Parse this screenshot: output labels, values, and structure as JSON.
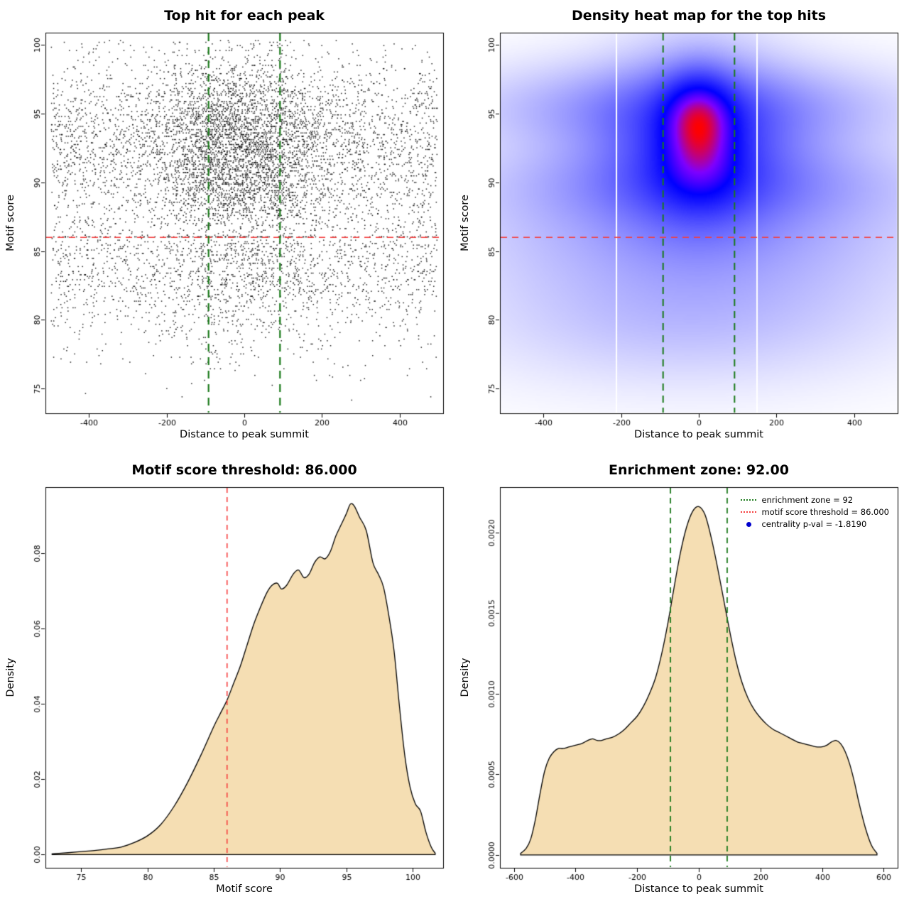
{
  "colors": {
    "background": "#ffffff",
    "point": "#000000",
    "threshold_line": "#f53d3d",
    "zone_line": "#1b7a1b",
    "density_fill": "#f5deb3",
    "curve_stroke": "#000000",
    "legend_dot": "#0000cd",
    "heat_low": "#ffffff",
    "heat_mid": "#0000ff",
    "heat_high": "#ff0000"
  },
  "values": {
    "motif_score_threshold": "86.000",
    "enrichment_zone": "92.00",
    "centrality_p_val": "-1.8190"
  },
  "chart_data": [
    {
      "type": "scatter",
      "title": "Top hit for each peak",
      "xlabel": "Distance to peak summit",
      "ylabel": "Motif score",
      "xlim": [
        -512,
        512
      ],
      "ylim": [
        73.2,
        100.9
      ],
      "xtick_values": [
        -400,
        -200,
        0,
        200,
        400
      ],
      "xtick_labels": [
        "-400",
        "-200",
        "0",
        "200",
        "400"
      ],
      "ytick_values": [
        75,
        80,
        85,
        90,
        95,
        100
      ],
      "ytick_labels": [
        "75",
        "80",
        "85",
        "90",
        "95",
        "100"
      ],
      "motif_score_threshold": 86,
      "enrichment_zone": [
        -92,
        92
      ],
      "cloud": {
        "n": 8200,
        "x_sigma_center": 118,
        "uniform_halfwidth": 497,
        "y_quantum": 0.12
      }
    },
    {
      "type": "heatmap",
      "title": "Density heat map for the top hits",
      "xlabel": "Distance to peak summit",
      "ylabel": "Motif score",
      "xlim": [
        -512,
        512
      ],
      "ylim": [
        73.2,
        100.9
      ],
      "xtick_values": [
        -400,
        -200,
        0,
        200,
        400
      ],
      "xtick_labels": [
        "-400",
        "-200",
        "0",
        "200",
        "400"
      ],
      "ytick_values": [
        75,
        80,
        85,
        90,
        95,
        100
      ],
      "ytick_labels": [
        "75",
        "80",
        "85",
        "90",
        "95",
        "100"
      ],
      "motif_score_threshold": 86,
      "enrichment_zone": [
        -92,
        92
      ],
      "gap_lines_x": [
        -212,
        150
      ],
      "density_field": {
        "gamma": 0.6,
        "components": [
          [
            1.0,
            0,
            94.6,
            58,
            2.1
          ],
          [
            0.42,
            4,
            91.2,
            70,
            2.0
          ],
          [
            0.45,
            0,
            92.5,
            125,
            4.0
          ],
          [
            0.32,
            -25,
            95.4,
            295,
            1.9
          ],
          [
            0.28,
            10,
            90.0,
            305,
            2.0
          ],
          [
            0.33,
            0,
            92.6,
            200,
            3.2
          ],
          [
            0.17,
            0,
            86.8,
            330,
            2.6
          ],
          [
            0.12,
            0,
            83.0,
            320,
            3.1
          ],
          [
            0.07,
            -40,
            79.5,
            300,
            2.7
          ]
        ]
      }
    },
    {
      "type": "area",
      "title": "Motif score threshold: 86.000",
      "xlabel": "Motif score",
      "ylabel": "Density",
      "xlim": [
        72.3,
        102.3
      ],
      "ylim": [
        -0.0035,
        0.0975
      ],
      "xtick_values": [
        75,
        80,
        85,
        90,
        95,
        100
      ],
      "xtick_labels": [
        "75",
        "80",
        "85",
        "90",
        "95",
        "100"
      ],
      "ytick_values": [
        0,
        0.02,
        0.04,
        0.06,
        0.08
      ],
      "ytick_labels": [
        "0.00",
        "0.02",
        "0.04",
        "0.06",
        "0.08"
      ],
      "threshold_x": 86,
      "curve": {
        "x": [
          72.8,
          74,
          75,
          76,
          77,
          78,
          79,
          80,
          81,
          82,
          83,
          84,
          85,
          85.5,
          86,
          86.5,
          87,
          87.5,
          88,
          88.5,
          89,
          89.4,
          89.8,
          90.1,
          90.5,
          91,
          91.4,
          91.8,
          92.2,
          92.6,
          93,
          93.4,
          93.8,
          94.2,
          94.6,
          95,
          95.3,
          95.6,
          96,
          96.5,
          97,
          97.4,
          97.8,
          98.2,
          98.6,
          99,
          99.4,
          99.8,
          100.2,
          100.6,
          101,
          101.4,
          101.7
        ],
        "y": [
          0.0002,
          0.0005,
          0.0008,
          0.0011,
          0.0015,
          0.002,
          0.0032,
          0.005,
          0.008,
          0.0128,
          0.019,
          0.0262,
          0.034,
          0.0375,
          0.041,
          0.0455,
          0.05,
          0.0555,
          0.061,
          0.0655,
          0.0695,
          0.0715,
          0.072,
          0.0705,
          0.0715,
          0.0745,
          0.0755,
          0.0735,
          0.0745,
          0.0775,
          0.079,
          0.0785,
          0.0805,
          0.0845,
          0.0875,
          0.0905,
          0.093,
          0.0925,
          0.0895,
          0.086,
          0.0775,
          0.0745,
          0.071,
          0.0635,
          0.054,
          0.0395,
          0.0265,
          0.018,
          0.0135,
          0.0115,
          0.006,
          0.002,
          0.0004
        ]
      }
    },
    {
      "type": "area",
      "title": "Enrichment zone: 92.00",
      "xlabel": "Distance to peak summit",
      "ylabel": "Density",
      "xlim": [
        -645,
        645
      ],
      "ylim": [
        -8e-05,
        0.00228
      ],
      "xtick_values": [
        -600,
        -400,
        -200,
        0,
        200,
        400,
        600
      ],
      "xtick_labels": [
        "-600",
        "-400",
        "-200",
        "0",
        "200",
        "400",
        "600"
      ],
      "ytick_values": [
        0,
        0.0005,
        0.001,
        0.0015,
        0.002
      ],
      "ytick_labels": [
        "0.0000",
        "0.0005",
        "0.0010",
        "0.0015",
        "0.0020"
      ],
      "zone_x": [
        -92,
        92
      ],
      "curve": {
        "x": [
          -578,
          -560,
          -545,
          -530,
          -515,
          -500,
          -485,
          -470,
          -455,
          -440,
          -420,
          -400,
          -380,
          -360,
          -345,
          -330,
          -315,
          -300,
          -280,
          -260,
          -240,
          -220,
          -200,
          -180,
          -160,
          -140,
          -120,
          -100,
          -80,
          -60,
          -40,
          -20,
          0,
          20,
          40,
          60,
          80,
          100,
          120,
          140,
          160,
          180,
          200,
          220,
          240,
          260,
          280,
          300,
          320,
          340,
          360,
          380,
          400,
          415,
          430,
          445,
          460,
          475,
          490,
          505,
          520,
          540,
          560,
          578
        ],
        "y": [
          1e-05,
          4e-05,
          0.0001,
          0.00022,
          0.00038,
          0.00052,
          0.0006,
          0.00064,
          0.00066,
          0.00066,
          0.00067,
          0.00068,
          0.00069,
          0.00071,
          0.00072,
          0.00071,
          0.00071,
          0.00072,
          0.00073,
          0.00075,
          0.00078,
          0.00082,
          0.00086,
          0.00092,
          0.001,
          0.0011,
          0.00125,
          0.00144,
          0.00166,
          0.00187,
          0.00203,
          0.00213,
          0.00216,
          0.00211,
          0.00197,
          0.00179,
          0.00159,
          0.00139,
          0.00121,
          0.00107,
          0.00097,
          0.0009,
          0.00085,
          0.00081,
          0.00078,
          0.00076,
          0.00074,
          0.00072,
          0.0007,
          0.00069,
          0.00068,
          0.00067,
          0.00067,
          0.00068,
          0.0007,
          0.00071,
          0.00069,
          0.00064,
          0.00056,
          0.00045,
          0.00032,
          0.00017,
          6e-05,
          1e-05
        ]
      },
      "legend": [
        {
          "label": "enrichment zone = 92",
          "marker": "green-dotted-line"
        },
        {
          "label": "motif score threshold = 86.000",
          "marker": "red-dotted-line"
        },
        {
          "label": "centrality p-val = -1.8190",
          "marker": "blue-dot"
        }
      ]
    }
  ]
}
